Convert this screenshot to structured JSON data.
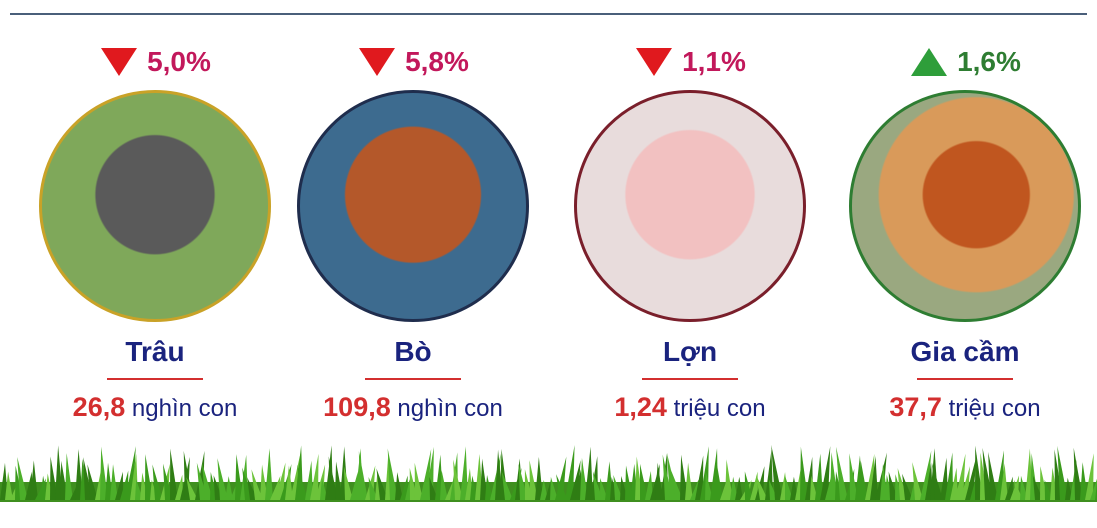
{
  "items": [
    {
      "change": "5,0%",
      "direction": "down",
      "name": "Trâu",
      "count": "26,8",
      "unit": "nghìn con"
    },
    {
      "change": "5,8%",
      "direction": "down",
      "name": "Bò",
      "count": "109,8",
      "unit": "nghìn con"
    },
    {
      "change": "1,1%",
      "direction": "down",
      "name": "Lợn",
      "count": "1,24",
      "unit": "triệu con"
    },
    {
      "change": "1,6%",
      "direction": "up",
      "name": "Gia cầm",
      "count": "37,7",
      "unit": "triệu con"
    }
  ]
}
